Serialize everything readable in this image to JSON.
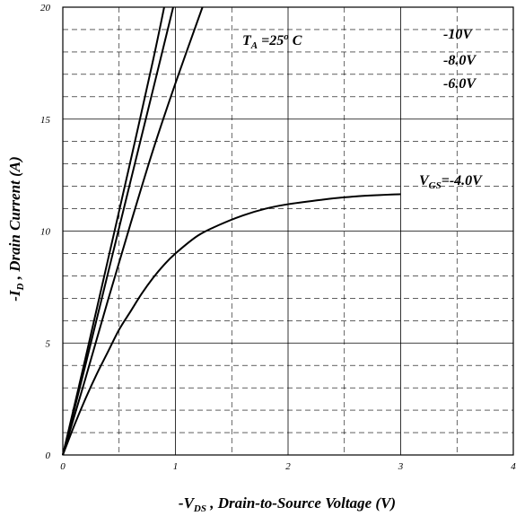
{
  "chart_data": {
    "type": "line",
    "xlabel": {
      "main": "-V",
      "sub": "DS",
      "rest": " , Drain-to-Source Voltage (V)"
    },
    "ylabel": {
      "main": "-I",
      "sub": "D",
      "rest": " , Drain Current (A)"
    },
    "xlim": [
      0,
      4
    ],
    "ylim": [
      0,
      20
    ],
    "xticks": [
      "0",
      "1",
      "2",
      "3",
      "4"
    ],
    "yticks": [
      "0",
      "5",
      "10",
      "15",
      "20"
    ],
    "grid": {
      "major": "solid",
      "minor": "dashed",
      "x_minor_step": 0.5,
      "y_minor_step": 1
    },
    "annotations": {
      "temp": {
        "main": "T",
        "sub": "A",
        "rest": " =25",
        "sup": "o",
        "tail": " C"
      },
      "vgs10": "-10V",
      "vgs8": "-8.0V",
      "vgs6": "-6.0V",
      "vgs4": {
        "main": "V",
        "sub": "GS",
        "rest": "=-4.0V"
      }
    },
    "series": [
      {
        "x": [
          0,
          0.2,
          0.4,
          0.6,
          0.8,
          0.9
        ],
        "y": [
          0,
          4.3,
          8.7,
          13.1,
          17.6,
          20
        ]
      },
      {
        "x": [
          0,
          0.2,
          0.4,
          0.6,
          0.8,
          0.98
        ],
        "y": [
          0,
          4.0,
          8.1,
          12.2,
          16.3,
          20
        ]
      },
      {
        "x": [
          0,
          0.2,
          0.4,
          0.6,
          0.8,
          1.0,
          1.24
        ],
        "y": [
          0,
          3.4,
          6.9,
          10.3,
          13.6,
          16.6,
          20
        ]
      },
      {
        "x": [
          0,
          0.1,
          0.2,
          0.3,
          0.4,
          0.5,
          0.6,
          0.7,
          0.8,
          0.9,
          1.0,
          1.2,
          1.4,
          1.6,
          1.8,
          2.0,
          2.3,
          2.6,
          3.0
        ],
        "y": [
          0,
          1.3,
          2.5,
          3.6,
          4.6,
          5.6,
          6.4,
          7.2,
          7.9,
          8.5,
          9.0,
          9.8,
          10.3,
          10.7,
          11.0,
          11.2,
          11.4,
          11.55,
          11.65
        ]
      }
    ]
  }
}
